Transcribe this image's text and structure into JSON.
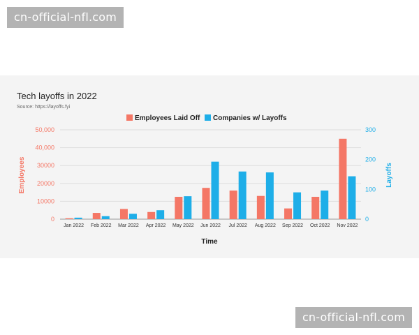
{
  "watermark": {
    "top": "cn-official-nfl.com",
    "bottom": "cn-official-nfl.com"
  },
  "chart_data": {
    "type": "bar",
    "title": "Tech layoffs in 2022",
    "subtitle": "Source: https://layoffs.fyi",
    "xlabel": "Time",
    "categories": [
      "Jan 2022",
      "Feb 2022",
      "Mar 2022",
      "Apr 2022",
      "May 2022",
      "Jun 2022",
      "Jul 2022",
      "Aug 2022",
      "Sep 2022",
      "Oct 2022",
      "Nov 2022"
    ],
    "series": [
      {
        "name": "Employees Laid Off",
        "axis": "left",
        "color": "#f47766",
        "values": [
          500,
          3500,
          5700,
          4000,
          12500,
          17500,
          16000,
          13000,
          6000,
          12500,
          45000
        ]
      },
      {
        "name": "Companies w/ Layoffs",
        "axis": "right",
        "color": "#1eaee8",
        "values": [
          5,
          10,
          18,
          30,
          77,
          193,
          160,
          157,
          90,
          96,
          144
        ]
      }
    ],
    "left_axis": {
      "label": "Employees",
      "color": "#f47766",
      "range": [
        0,
        50000
      ],
      "ticks": [
        "0",
        "10000",
        "20000",
        "30000",
        "40000",
        "50,000"
      ],
      "tick_labels": [
        "0",
        "10000",
        "20000",
        "30000",
        "40,000",
        "50,000"
      ]
    },
    "right_axis": {
      "label": "Layoffs",
      "color": "#1eaee8",
      "range": [
        0,
        300
      ],
      "ticks": [
        "0",
        "100",
        "200",
        "300"
      ]
    },
    "legend_position": "top-center",
    "grid": true
  }
}
